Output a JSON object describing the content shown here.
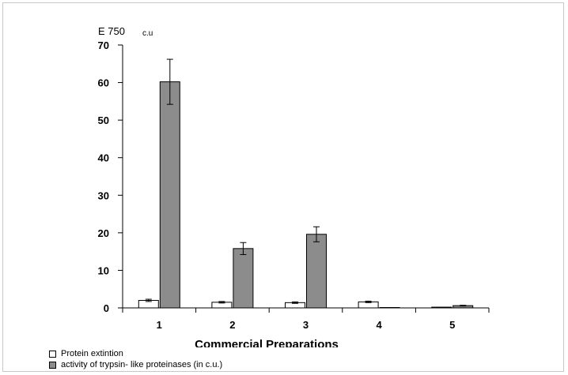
{
  "chart_data": {
    "type": "bar",
    "y_unit_label": "E 750",
    "y_unit_sublabel": "c.u",
    "xlabel": "Commercial Preparations",
    "categories": [
      "1",
      "2",
      "3",
      "4",
      "5"
    ],
    "ylim": [
      0,
      70
    ],
    "yticks": [
      0,
      10,
      20,
      30,
      40,
      50,
      60,
      70
    ],
    "grid": false,
    "legend_position": "bottom-left",
    "series": [
      {
        "name": "Protein extintion",
        "color": "#ffffff",
        "values": [
          2.0,
          1.5,
          1.4,
          1.6,
          0.2
        ],
        "errors": [
          0.3,
          0.2,
          0.2,
          0.2,
          0.0
        ]
      },
      {
        "name": "activity of trypsin- like proteinases (in c.u.)",
        "color": "#8c8c8c",
        "values": [
          60.2,
          15.8,
          19.6,
          0,
          0.6
        ],
        "errors": [
          6.0,
          1.6,
          2.0,
          0,
          0.1
        ]
      }
    ]
  }
}
